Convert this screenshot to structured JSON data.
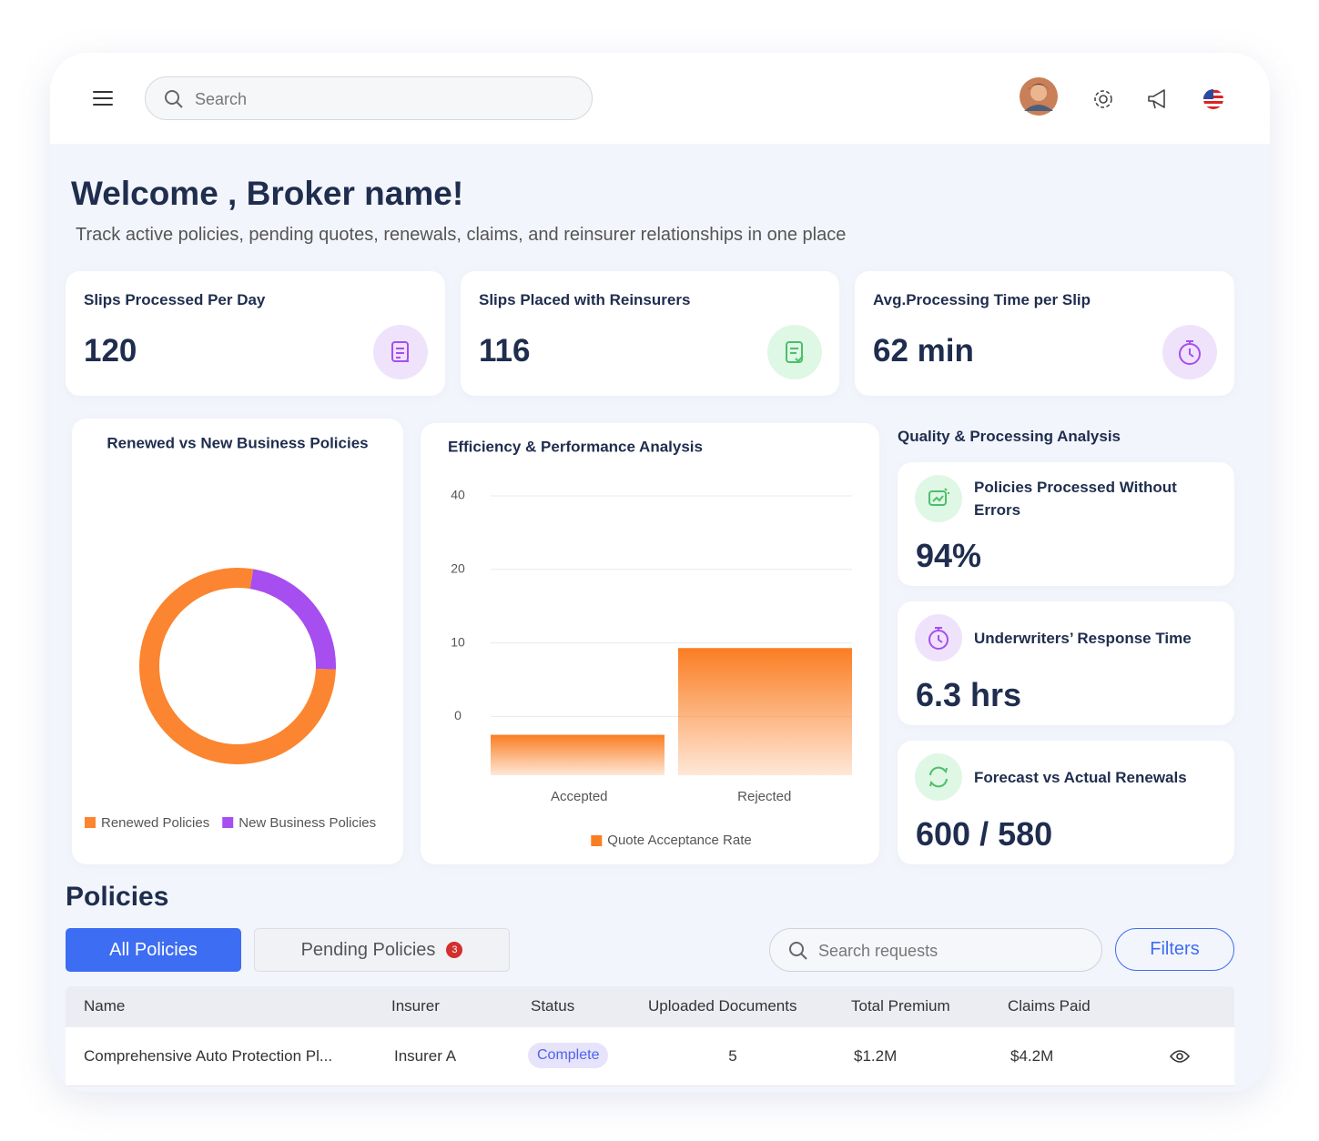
{
  "header": {
    "search_placeholder": "Search"
  },
  "welcome": {
    "title": "Welcome , Broker name!",
    "subtitle": "Track active policies, pending quotes, renewals, claims, and reinsurer relationships in one place"
  },
  "kpis": [
    {
      "label": "Slips Processed Per Day",
      "value": 120
    },
    {
      "label": "Slips Placed with Reinsurers",
      "value": 116
    },
    {
      "label": "Avg.Processing Time per Slip",
      "value": "62 min"
    }
  ],
  "chart_data": [
    {
      "type": "donut",
      "title": "Renewed vs New Business Policies",
      "categories": [
        "Renewed Policies",
        "New Business Policies"
      ],
      "values": [
        77,
        23
      ],
      "colors": [
        "#fb8530",
        "#a64ef0"
      ]
    },
    {
      "type": "bar",
      "title": "Efficiency & Performance Analysis",
      "categories": [
        "Accepted",
        "Rejected"
      ],
      "series": [
        {
          "name": "Quote Acceptance Rate",
          "color": "#fb7d22",
          "values": [
            -2.5,
            9.3
          ]
        }
      ],
      "ylim": [
        -8,
        40
      ],
      "yticks": [
        40,
        20,
        10,
        0
      ],
      "grid": true
    }
  ],
  "quality": {
    "title": "Quality & Processing Analysis",
    "cards": [
      {
        "label": "Policies Processed Without Errors",
        "value": "94%"
      },
      {
        "label": "Underwriters’ Response Time",
        "value": "6.3 hrs"
      },
      {
        "label": "Forecast vs Actual Renewals",
        "value": "600 / 580"
      }
    ]
  },
  "policies": {
    "title": "Policies",
    "tabs": [
      {
        "label": "All Policies"
      },
      {
        "label": "Pending Policies",
        "badge": "3"
      }
    ],
    "search_placeholder": "Search requests",
    "filters": "Filters",
    "table": {
      "columns": [
        "Name",
        "Insurer",
        "Status",
        "Uploaded Documents",
        "Total Premium",
        "Claims Paid"
      ],
      "rows": [
        [
          "Comprehensive Auto Protection Pl...",
          "Insurer A",
          "Complete",
          "5",
          "$1.2M",
          "$4.2M"
        ]
      ]
    }
  }
}
